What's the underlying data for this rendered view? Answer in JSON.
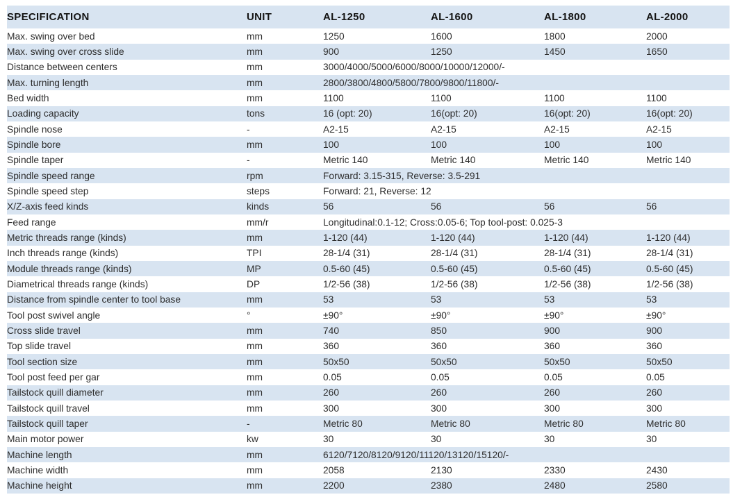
{
  "colors": {
    "band_blue": "#d8e4f1",
    "background": "#ffffff",
    "body_text": "#2d2d2d",
    "header_text": "#141414"
  },
  "table": {
    "columns": [
      "SPECIFICATION",
      "UNIT",
      "AL-1250",
      "AL-1600",
      "AL-1800",
      "AL-2000"
    ],
    "rows": [
      {
        "spec": "Max. swing over bed",
        "unit": "mm",
        "values": [
          "1250",
          "1600",
          "1800",
          "2000"
        ]
      },
      {
        "spec": "Max. swing over cross slide",
        "unit": "mm",
        "values": [
          "900",
          "1250",
          "1450",
          "1650"
        ]
      },
      {
        "spec": "Distance between centers",
        "unit": "mm",
        "merged": "3000/4000/5000/6000/8000/10000/12000/-"
      },
      {
        "spec": "Max. turning length",
        "unit": "mm",
        "merged": "2800/3800/4800/5800/7800/9800/11800/-"
      },
      {
        "spec": "Bed width",
        "unit": "mm",
        "values": [
          "1100",
          "1100",
          "1100",
          "1100"
        ]
      },
      {
        "spec": "Loading capacity",
        "unit": "tons",
        "values": [
          "16 (opt: 20)",
          "16(opt: 20)",
          "16(opt: 20)",
          "16(opt: 20)"
        ]
      },
      {
        "spec": "Spindle nose",
        "unit": "-",
        "values": [
          "A2-15",
          "A2-15",
          "A2-15",
          "A2-15"
        ]
      },
      {
        "spec": "Spindle bore",
        "unit": "mm",
        "values": [
          "100",
          "100",
          "100",
          "100"
        ]
      },
      {
        "spec": "Spindle taper",
        "unit": "-",
        "values": [
          "Metric 140",
          "Metric 140",
          "Metric 140",
          "Metric 140"
        ]
      },
      {
        "spec": "Spindle speed range",
        "unit": "rpm",
        "merged": "Forward: 3.15-315, Reverse: 3.5-291"
      },
      {
        "spec": "Spindle speed step",
        "unit": "steps",
        "merged": "Forward: 21, Reverse: 12"
      },
      {
        "spec": "X/Z-axis feed kinds",
        "unit": "kinds",
        "values": [
          "56",
          "56",
          "56",
          "56"
        ]
      },
      {
        "spec": "Feed range",
        "unit": "mm/r",
        "merged": "Longitudinal:0.1-12; Cross:0.05-6; Top tool-post: 0.025-3"
      },
      {
        "spec": "Metric threads range (kinds)",
        "unit": "mm",
        "values": [
          "1-120 (44)",
          "1-120 (44)",
          "1-120 (44)",
          "1-120 (44)"
        ]
      },
      {
        "spec": "Inch threads range (kinds)",
        "unit": "TPI",
        "values": [
          "28-1/4 (31)",
          "28-1/4 (31)",
          "28-1/4 (31)",
          "28-1/4 (31)"
        ]
      },
      {
        "spec": "Module threads range (kinds)",
        "unit": "MP",
        "values": [
          "0.5-60 (45)",
          "0.5-60 (45)",
          "0.5-60 (45)",
          "0.5-60 (45)"
        ]
      },
      {
        "spec": "Diametrical threads range (kinds)",
        "unit": "DP",
        "values": [
          "1/2-56 (38)",
          "1/2-56 (38)",
          "1/2-56 (38)",
          "1/2-56 (38)"
        ]
      },
      {
        "spec": "Distance from spindle center to tool base",
        "unit": "mm",
        "values": [
          "53",
          "53",
          "53",
          "53"
        ]
      },
      {
        "spec": "Tool post swivel angle",
        "unit": "°",
        "values": [
          "±90°",
          "±90°",
          "±90°",
          "±90°"
        ]
      },
      {
        "spec": "Cross slide travel",
        "unit": "mm",
        "values": [
          "740",
          "850",
          "900",
          "900"
        ]
      },
      {
        "spec": "Top slide travel",
        "unit": "mm",
        "values": [
          "360",
          "360",
          "360",
          "360"
        ]
      },
      {
        "spec": "Tool section size",
        "unit": "mm",
        "values": [
          "50x50",
          "50x50",
          "50x50",
          "50x50"
        ]
      },
      {
        "spec": "Tool post feed per gar",
        "unit": "mm",
        "values": [
          "0.05",
          "0.05",
          "0.05",
          "0.05"
        ]
      },
      {
        "spec": "Tailstock quill diameter",
        "unit": "mm",
        "values": [
          "260",
          "260",
          "260",
          "260"
        ]
      },
      {
        "spec": "Tailstock quill travel",
        "unit": "mm",
        "values": [
          "300",
          "300",
          "300",
          "300"
        ]
      },
      {
        "spec": "Tailstock quill taper",
        "unit": "-",
        "values": [
          "Metric 80",
          "Metric 80",
          "Metric 80",
          "Metric 80"
        ]
      },
      {
        "spec": "Main motor power",
        "unit": "kw",
        "values": [
          "30",
          "30",
          "30",
          "30"
        ]
      },
      {
        "spec": "Machine length",
        "unit": "mm",
        "merged": "6120/7120/8120/9120/11120/13120/15120/-"
      },
      {
        "spec": "Machine width",
        "unit": "mm",
        "values": [
          "2058",
          "2130",
          "2330",
          "2430"
        ]
      },
      {
        "spec": "Machine height",
        "unit": "mm",
        "values": [
          "2200",
          "2380",
          "2480",
          "2580"
        ]
      }
    ]
  }
}
